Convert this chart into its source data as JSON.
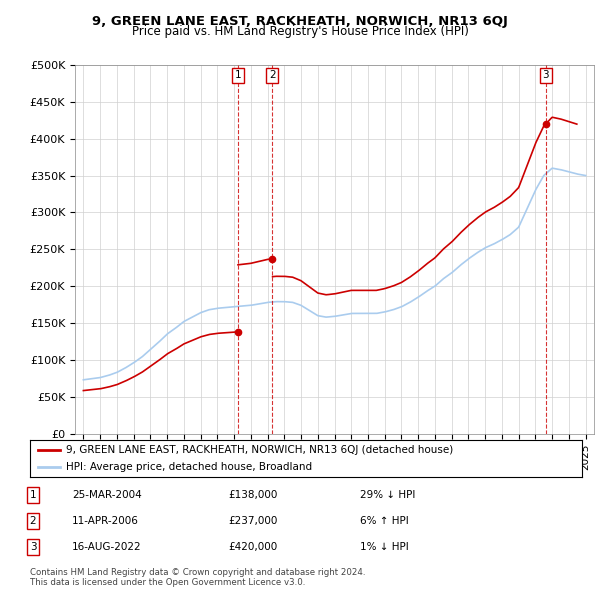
{
  "title": "9, GREEN LANE EAST, RACKHEATH, NORWICH, NR13 6QJ",
  "subtitle": "Price paid vs. HM Land Registry's House Price Index (HPI)",
  "hpi_line_color": "#aaccee",
  "price_line_color": "#cc0000",
  "ylim": [
    0,
    500000
  ],
  "yticks": [
    0,
    50000,
    100000,
    150000,
    200000,
    250000,
    300000,
    350000,
    400000,
    450000,
    500000
  ],
  "ytick_labels": [
    "£0",
    "£50K",
    "£100K",
    "£150K",
    "£200K",
    "£250K",
    "£300K",
    "£350K",
    "£400K",
    "£450K",
    "£500K"
  ],
  "xlim_start": 1994.5,
  "xlim_end": 2025.5,
  "xticks": [
    1995,
    1996,
    1997,
    1998,
    1999,
    2000,
    2001,
    2002,
    2003,
    2004,
    2005,
    2006,
    2007,
    2008,
    2009,
    2010,
    2011,
    2012,
    2013,
    2014,
    2015,
    2016,
    2017,
    2018,
    2019,
    2020,
    2021,
    2022,
    2023,
    2024,
    2025
  ],
  "hpi_years": [
    1995,
    1995.5,
    1996,
    1996.5,
    1997,
    1997.5,
    1998,
    1998.5,
    1999,
    1999.5,
    2000,
    2000.5,
    2001,
    2001.5,
    2002,
    2002.5,
    2003,
    2003.5,
    2004,
    2004.5,
    2005,
    2005.5,
    2006,
    2006.5,
    2007,
    2007.5,
    2008,
    2008.5,
    2009,
    2009.5,
    2010,
    2010.5,
    2011,
    2011.5,
    2012,
    2012.5,
    2013,
    2013.5,
    2014,
    2014.5,
    2015,
    2015.5,
    2016,
    2016.5,
    2017,
    2017.5,
    2018,
    2018.5,
    2019,
    2019.5,
    2020,
    2020.5,
    2021,
    2021.5,
    2022,
    2022.5,
    2023,
    2023.5,
    2024,
    2024.5,
    2025
  ],
  "hpi_values": [
    73000,
    74500,
    76000,
    79000,
    83000,
    89000,
    96000,
    104000,
    114000,
    124000,
    135000,
    143000,
    152000,
    158000,
    164000,
    168000,
    170000,
    171000,
    172000,
    173000,
    174000,
    176000,
    178000,
    179000,
    179000,
    178000,
    174000,
    167000,
    160000,
    158000,
    159000,
    161000,
    163000,
    163000,
    163000,
    163000,
    165000,
    168000,
    172000,
    178000,
    185000,
    193000,
    200000,
    210000,
    218000,
    228000,
    237000,
    245000,
    252000,
    257000,
    263000,
    270000,
    280000,
    305000,
    330000,
    350000,
    360000,
    358000,
    355000,
    352000,
    350000
  ],
  "t1_year": 2004.23,
  "t1_price": 138000,
  "t2_year": 2006.28,
  "t2_price": 237000,
  "t3_year": 2022.62,
  "t3_price": 420000,
  "transactions": [
    {
      "date_year": 2004.23,
      "price": 138000,
      "label": "1"
    },
    {
      "date_year": 2006.28,
      "price": 237000,
      "label": "2"
    },
    {
      "date_year": 2022.62,
      "price": 420000,
      "label": "3"
    }
  ],
  "transaction_table": [
    {
      "num": "1",
      "date": "25-MAR-2004",
      "price": "£138,000",
      "hpi_rel": "29% ↓ HPI"
    },
    {
      "num": "2",
      "date": "11-APR-2006",
      "price": "£237,000",
      "hpi_rel": "6% ↑ HPI"
    },
    {
      "num": "3",
      "date": "16-AUG-2022",
      "price": "£420,000",
      "hpi_rel": "1% ↓ HPI"
    }
  ],
  "legend_line1": "9, GREEN LANE EAST, RACKHEATH, NORWICH, NR13 6QJ (detached house)",
  "legend_line2": "HPI: Average price, detached house, Broadland",
  "footer": "Contains HM Land Registry data © Crown copyright and database right 2024.\nThis data is licensed under the Open Government Licence v3.0.",
  "background_color": "#ffffff",
  "grid_color": "#d0d0d0"
}
